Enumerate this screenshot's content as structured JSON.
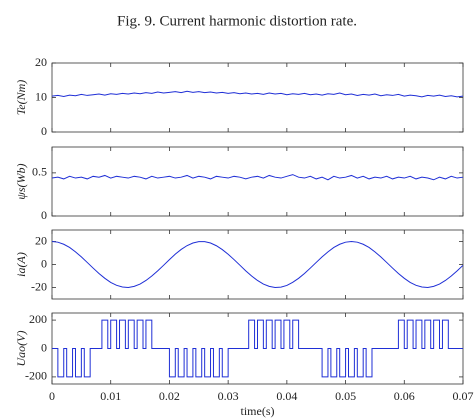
{
  "caption": "Fig. 9.  Current harmonic distortion rate.",
  "chart_data": [
    {
      "type": "line",
      "ylabel": "Te(Nm)",
      "color": "#1f2fd6",
      "x": [
        0,
        0.001,
        0.002,
        0.003,
        0.004,
        0.005,
        0.006,
        0.007,
        0.008,
        0.009,
        0.01,
        0.011,
        0.012,
        0.013,
        0.014,
        0.015,
        0.016,
        0.017,
        0.018,
        0.019,
        0.02,
        0.021,
        0.022,
        0.023,
        0.024,
        0.025,
        0.026,
        0.027,
        0.028,
        0.029,
        0.03,
        0.031,
        0.032,
        0.033,
        0.034,
        0.035,
        0.036,
        0.037,
        0.038,
        0.039,
        0.04,
        0.041,
        0.042,
        0.043,
        0.044,
        0.045,
        0.046,
        0.047,
        0.048,
        0.049,
        0.05,
        0.051,
        0.052,
        0.053,
        0.054,
        0.055,
        0.056,
        0.057,
        0.058,
        0.059,
        0.06,
        0.061,
        0.062,
        0.063,
        0.064,
        0.065,
        0.066,
        0.067,
        0.068,
        0.069,
        0.07
      ],
      "values": [
        10.4,
        10.6,
        10.3,
        10.7,
        10.5,
        10.9,
        10.6,
        10.8,
        11.0,
        10.7,
        11.1,
        10.9,
        11.2,
        11.0,
        11.3,
        11.1,
        11.4,
        11.2,
        11.6,
        11.3,
        11.5,
        11.7,
        11.4,
        11.8,
        11.5,
        11.7,
        11.4,
        11.6,
        11.3,
        11.5,
        11.2,
        11.4,
        11.1,
        11.3,
        11.0,
        11.2,
        10.9,
        11.3,
        11.0,
        11.2,
        10.8,
        11.1,
        10.9,
        11.2,
        10.8,
        11.0,
        10.7,
        11.1,
        10.9,
        11.3,
        10.8,
        11.0,
        10.6,
        10.9,
        10.7,
        11.0,
        10.5,
        10.8,
        10.6,
        10.9,
        10.4,
        10.7,
        10.5,
        10.2,
        10.6,
        10.4,
        10.7,
        10.3,
        10.5,
        10.2,
        10.4
      ],
      "xlim": [
        0,
        0.07
      ],
      "xticks": [
        0,
        0.01,
        0.02,
        0.03,
        0.04,
        0.05,
        0.06,
        0.07
      ],
      "ylim": [
        0,
        20
      ],
      "yticks": [
        0,
        10,
        20
      ]
    },
    {
      "type": "line",
      "ylabel": "ψs(Wb)",
      "color": "#1f2fd6",
      "x": [
        0,
        0.001,
        0.002,
        0.003,
        0.004,
        0.005,
        0.006,
        0.007,
        0.008,
        0.009,
        0.01,
        0.011,
        0.012,
        0.013,
        0.014,
        0.015,
        0.016,
        0.017,
        0.018,
        0.019,
        0.02,
        0.021,
        0.022,
        0.023,
        0.024,
        0.025,
        0.026,
        0.027,
        0.028,
        0.029,
        0.03,
        0.031,
        0.032,
        0.033,
        0.034,
        0.035,
        0.036,
        0.037,
        0.038,
        0.039,
        0.04,
        0.041,
        0.042,
        0.043,
        0.044,
        0.045,
        0.046,
        0.047,
        0.048,
        0.049,
        0.05,
        0.051,
        0.052,
        0.053,
        0.054,
        0.055,
        0.056,
        0.057,
        0.058,
        0.059,
        0.06,
        0.061,
        0.062,
        0.063,
        0.064,
        0.065,
        0.066,
        0.067,
        0.068,
        0.069,
        0.07
      ],
      "values": [
        0.44,
        0.45,
        0.43,
        0.46,
        0.44,
        0.45,
        0.43,
        0.46,
        0.45,
        0.47,
        0.44,
        0.46,
        0.45,
        0.44,
        0.46,
        0.45,
        0.43,
        0.46,
        0.44,
        0.45,
        0.46,
        0.44,
        0.45,
        0.47,
        0.44,
        0.46,
        0.45,
        0.43,
        0.46,
        0.45,
        0.44,
        0.46,
        0.45,
        0.43,
        0.45,
        0.46,
        0.44,
        0.47,
        0.45,
        0.44,
        0.46,
        0.48,
        0.45,
        0.44,
        0.46,
        0.43,
        0.45,
        0.42,
        0.46,
        0.44,
        0.45,
        0.47,
        0.44,
        0.46,
        0.43,
        0.45,
        0.44,
        0.46,
        0.43,
        0.45,
        0.44,
        0.46,
        0.43,
        0.45,
        0.44,
        0.42,
        0.45,
        0.43,
        0.46,
        0.44,
        0.45
      ],
      "xlim": [
        0,
        0.07
      ],
      "xticks": [
        0,
        0.01,
        0.02,
        0.03,
        0.04,
        0.05,
        0.06,
        0.07
      ],
      "ylim": [
        0,
        0.8
      ],
      "yticks": [
        0,
        0.5
      ]
    },
    {
      "type": "line",
      "ylabel": "ia(A)",
      "color": "#1f2fd6",
      "x": [
        0,
        0.001,
        0.002,
        0.003,
        0.004,
        0.005,
        0.006,
        0.007,
        0.008,
        0.009,
        0.01,
        0.011,
        0.012,
        0.013,
        0.014,
        0.015,
        0.016,
        0.017,
        0.018,
        0.019,
        0.02,
        0.021,
        0.022,
        0.023,
        0.024,
        0.025,
        0.026,
        0.027,
        0.028,
        0.029,
        0.03,
        0.031,
        0.032,
        0.033,
        0.034,
        0.035,
        0.036,
        0.037,
        0.038,
        0.039,
        0.04,
        0.041,
        0.042,
        0.043,
        0.044,
        0.045,
        0.046,
        0.047,
        0.048,
        0.049,
        0.05,
        0.051,
        0.052,
        0.053,
        0.054,
        0.055,
        0.056,
        0.057,
        0.058,
        0.059,
        0.06,
        0.061,
        0.062,
        0.063,
        0.064,
        0.065,
        0.066,
        0.067,
        0.068,
        0.069,
        0.07
      ],
      "values": [
        20,
        19.4,
        17.6,
        14.8,
        11.0,
        6.6,
        1.8,
        -3.1,
        -7.8,
        -12.0,
        -15.6,
        -18.1,
        -19.6,
        -20.0,
        -19.0,
        -17.0,
        -13.9,
        -10.0,
        -5.5,
        -0.7,
        4.2,
        9.0,
        13.1,
        16.4,
        18.7,
        19.9,
        19.9,
        18.7,
        16.3,
        13.0,
        8.9,
        4.3,
        -0.6,
        -5.5,
        -10.0,
        -13.9,
        -17.0,
        -19.0,
        -20.0,
        -19.7,
        -18.2,
        -15.5,
        -12.0,
        -7.8,
        -3.1,
        1.8,
        6.6,
        11.0,
        14.8,
        17.6,
        19.4,
        20,
        19.4,
        17.6,
        14.8,
        11.0,
        6.6,
        1.8,
        -3.1,
        -7.8,
        -12.0,
        -15.6,
        -18.1,
        -19.6,
        -20.0,
        -19.0,
        -17.0,
        -13.9,
        -10.0,
        -5.5,
        -0.7
      ],
      "xlim": [
        0,
        0.07
      ],
      "xticks": [
        0,
        0.01,
        0.02,
        0.03,
        0.04,
        0.05,
        0.06,
        0.07
      ],
      "ylim": [
        -30,
        30
      ],
      "yticks": [
        -20,
        0,
        20
      ]
    },
    {
      "type": "step",
      "ylabel": "Uao(V)",
      "xlabel": "time(s)",
      "color": "#1f2fd6",
      "x": [
        0,
        0.001,
        0.002,
        0.0025,
        0.0035,
        0.004,
        0.005,
        0.0055,
        0.0065,
        0.0085,
        0.0095,
        0.01,
        0.011,
        0.0115,
        0.0125,
        0.013,
        0.014,
        0.0145,
        0.0155,
        0.016,
        0.017,
        0.02,
        0.021,
        0.0215,
        0.0225,
        0.023,
        0.024,
        0.0245,
        0.0255,
        0.026,
        0.027,
        0.0275,
        0.0285,
        0.029,
        0.03,
        0.0335,
        0.0345,
        0.035,
        0.036,
        0.0365,
        0.0375,
        0.038,
        0.039,
        0.0395,
        0.0405,
        0.041,
        0.042,
        0.046,
        0.047,
        0.0475,
        0.0485,
        0.049,
        0.05,
        0.0505,
        0.0515,
        0.052,
        0.053,
        0.0535,
        0.0545,
        0.059,
        0.06,
        0.0605,
        0.0615,
        0.062,
        0.063,
        0.0635,
        0.0645,
        0.065,
        0.066,
        0.0665,
        0.0675,
        0.07
      ],
      "values": [
        0,
        -200,
        0,
        -200,
        0,
        -200,
        0,
        -200,
        0,
        200,
        0,
        200,
        0,
        200,
        0,
        200,
        0,
        200,
        0,
        200,
        0,
        -200,
        0,
        -200,
        0,
        -200,
        0,
        -200,
        0,
        -200,
        0,
        -200,
        0,
        -200,
        0,
        200,
        0,
        200,
        0,
        200,
        0,
        200,
        0,
        200,
        0,
        200,
        0,
        -200,
        0,
        -200,
        0,
        -200,
        0,
        -200,
        0,
        -200,
        0,
        -200,
        0,
        200,
        0,
        200,
        0,
        200,
        0,
        200,
        0,
        200,
        0,
        200,
        0,
        0
      ],
      "xlim": [
        0,
        0.07
      ],
      "xticks": [
        0,
        0.01,
        0.02,
        0.03,
        0.04,
        0.05,
        0.06,
        0.07
      ],
      "ylim": [
        -250,
        250
      ],
      "yticks": [
        -200,
        0,
        200
      ]
    }
  ]
}
